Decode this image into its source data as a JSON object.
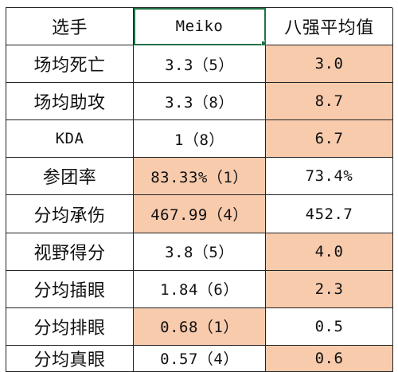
{
  "table": {
    "headers": [
      "选手",
      "Meiko",
      "八强平均值"
    ],
    "rows": [
      {
        "label": "场均死亡",
        "player": "3.3（5）",
        "avg": "3.0"
      },
      {
        "label": "场均助攻",
        "player": "3.3（8）",
        "avg": "8.7"
      },
      {
        "label": "KDA",
        "player": "1（8）",
        "avg": "6.7"
      },
      {
        "label": "参团率",
        "player": "83.33%（1）",
        "avg": "73.4%"
      },
      {
        "label": "分均承伤",
        "player": "467.99（4）",
        "avg": "452.7"
      },
      {
        "label": "视野得分",
        "player": "3.8（5）",
        "avg": "4.0"
      },
      {
        "label": "分均插眼",
        "player": "1.84（6）",
        "avg": "2.3"
      },
      {
        "label": "分均排眼",
        "player": "0.68（1）",
        "avg": "0.5"
      },
      {
        "label": "分均真眼",
        "player": "0.57（4）",
        "avg": "0.6"
      }
    ]
  },
  "highlight_color": "#f8cbad",
  "selection_color": "#217346"
}
